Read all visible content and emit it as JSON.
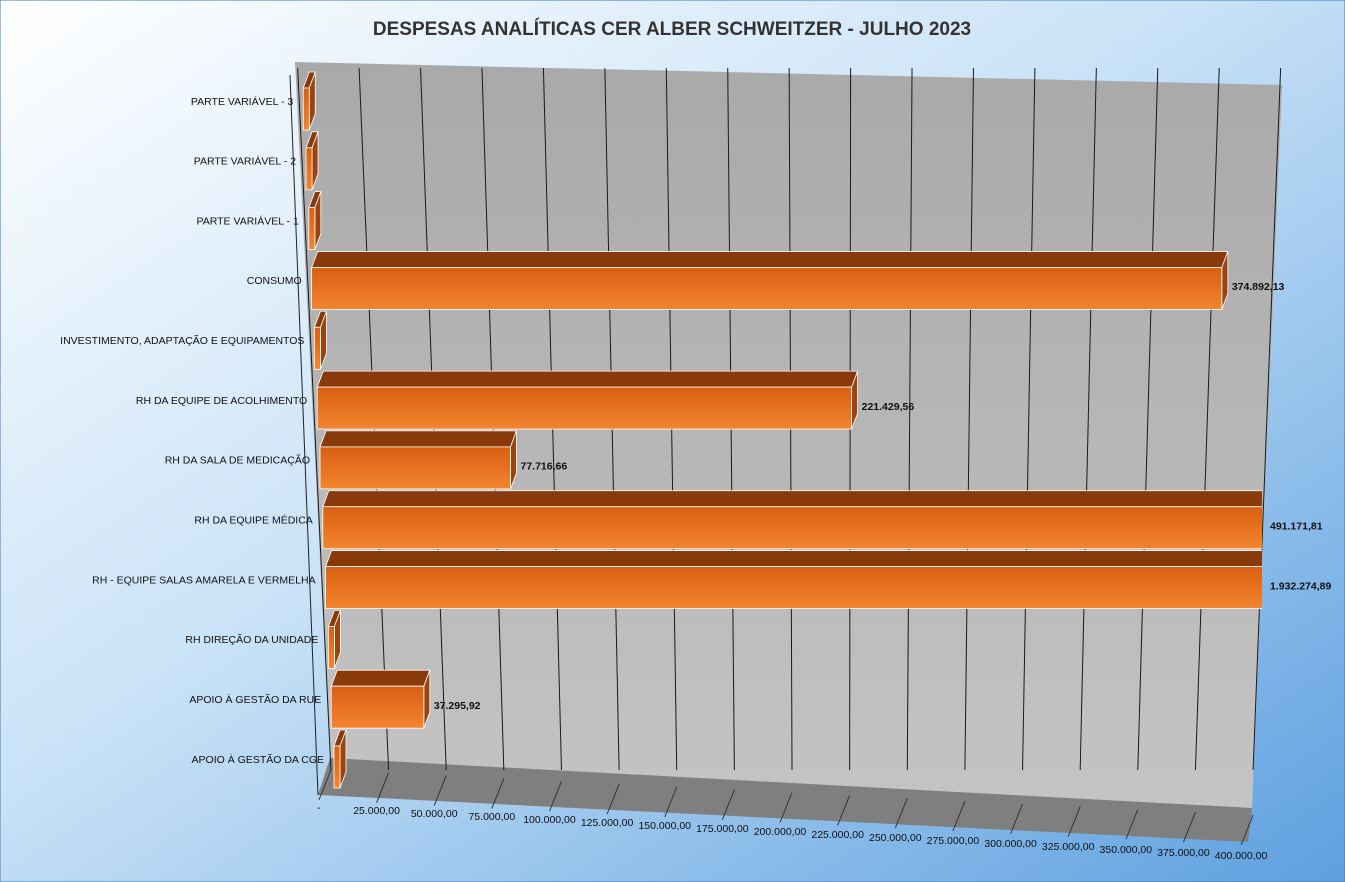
{
  "chart_data": {
    "type": "bar3d_horizontal",
    "title": "DESPESAS ANALÍTICAS CER ALBER SCHWEITZER - JULHO 2023",
    "categories": [
      "PARTE VARIÁVEL - 3",
      "PARTE VARIÁVEL - 2",
      "PARTE VARIÁVEL - 1",
      "CONSUMO",
      "INVESTIMENTO, ADAPTAÇÃO E EQUIPAMENTOS",
      "RH DA EQUIPE DE ACOLHIMENTO",
      "RH DA SALA DE MEDICAÇÃO",
      "RH DA EQUIPE MÉDICA",
      "RH - EQUIPE SALAS AMARELA E VERMELHA",
      "RH DIREÇÃO DA UNIDADE",
      "APOIO À GESTÃO DA RUE",
      "APOIO À GESTÃO DA CGE"
    ],
    "values": [
      0,
      0,
      0,
      374892.13,
      0,
      221429.56,
      77716.66,
      491171.81,
      1932274.89,
      0,
      37295.92,
      0
    ],
    "value_labels": [
      null,
      null,
      null,
      "374.892,13",
      null,
      "221.429,56",
      "77.716,66",
      "491.171,81",
      "1.932.274,89",
      null,
      "37.295,92",
      null
    ],
    "color": "#e8711f",
    "xlim": [
      0,
      400000
    ],
    "xticks": [
      {
        "value": 0,
        "label": "-"
      },
      {
        "value": 25000,
        "label": "25.000,00"
      },
      {
        "value": 50000,
        "label": "50.000,00"
      },
      {
        "value": 75000,
        "label": "75.000,00"
      },
      {
        "value": 100000,
        "label": "100.000,00"
      },
      {
        "value": 125000,
        "label": "125.000,00"
      },
      {
        "value": 150000,
        "label": "150.000,00"
      },
      {
        "value": 175000,
        "label": "175.000,00"
      },
      {
        "value": 200000,
        "label": "200.000,00"
      },
      {
        "value": 225000,
        "label": "225.000,00"
      },
      {
        "value": 250000,
        "label": "250.000,00"
      },
      {
        "value": 275000,
        "label": "275.000,00"
      },
      {
        "value": 300000,
        "label": "300.000,00"
      },
      {
        "value": 325000,
        "label": "325.000,00"
      },
      {
        "value": 350000,
        "label": "350.000,00"
      },
      {
        "value": 375000,
        "label": "375.000,00"
      },
      {
        "value": 400000,
        "label": "400.000,00"
      }
    ],
    "grid": true
  }
}
